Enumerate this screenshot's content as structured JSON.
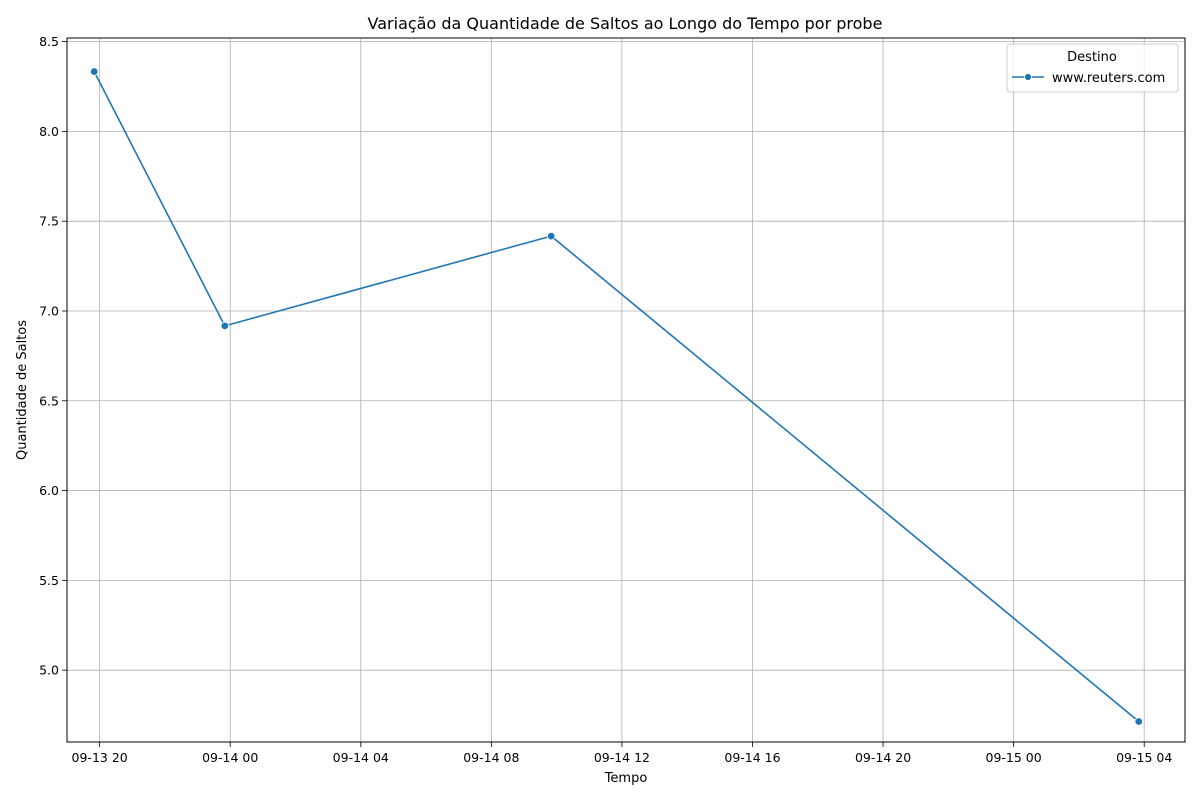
{
  "chart_data": {
    "type": "line",
    "title": "Variação da Quantidade de Saltos ao Longo do Tempo por probe",
    "xlabel": "Tempo",
    "ylabel": "Quantidade de Saltos",
    "x_axis": {
      "kind": "datetime",
      "range": [
        "2023-09-13T19:00",
        "2023-09-15T05:15"
      ],
      "ticks": [
        {
          "value": "2023-09-13T20:00",
          "label": "09-13 20"
        },
        {
          "value": "2023-09-14T00:00",
          "label": "09-14 00"
        },
        {
          "value": "2023-09-14T04:00",
          "label": "09-14 04"
        },
        {
          "value": "2023-09-14T08:00",
          "label": "09-14 08"
        },
        {
          "value": "2023-09-14T12:00",
          "label": "09-14 12"
        },
        {
          "value": "2023-09-14T16:00",
          "label": "09-14 16"
        },
        {
          "value": "2023-09-14T20:00",
          "label": "09-14 20"
        },
        {
          "value": "2023-09-15T00:00",
          "label": "09-15 00"
        },
        {
          "value": "2023-09-15T04:00",
          "label": "09-15 04"
        }
      ]
    },
    "y_axis": {
      "range": [
        4.6,
        8.52
      ],
      "ticks": [
        {
          "value": 5.0,
          "label": "5.0"
        },
        {
          "value": 5.5,
          "label": "5.5"
        },
        {
          "value": 6.0,
          "label": "6.0"
        },
        {
          "value": 6.5,
          "label": "6.5"
        },
        {
          "value": 7.0,
          "label": "7.0"
        },
        {
          "value": 7.5,
          "label": "7.5"
        },
        {
          "value": 8.0,
          "label": "8.0"
        },
        {
          "value": 8.5,
          "label": "8.5"
        }
      ]
    },
    "grid": true,
    "legend": {
      "title": "Destino",
      "placement": "top-right"
    },
    "series": [
      {
        "name": "www.reuters.com",
        "color": "#1f77b4",
        "marker": "circle",
        "points": [
          {
            "x": "2023-09-13T19:50",
            "y": 8.333
          },
          {
            "x": "2023-09-13T23:50",
            "y": 6.917
          },
          {
            "x": "2023-09-14T09:50",
            "y": 7.417
          },
          {
            "x": "2023-09-15T03:50",
            "y": 4.714
          }
        ]
      }
    ]
  }
}
